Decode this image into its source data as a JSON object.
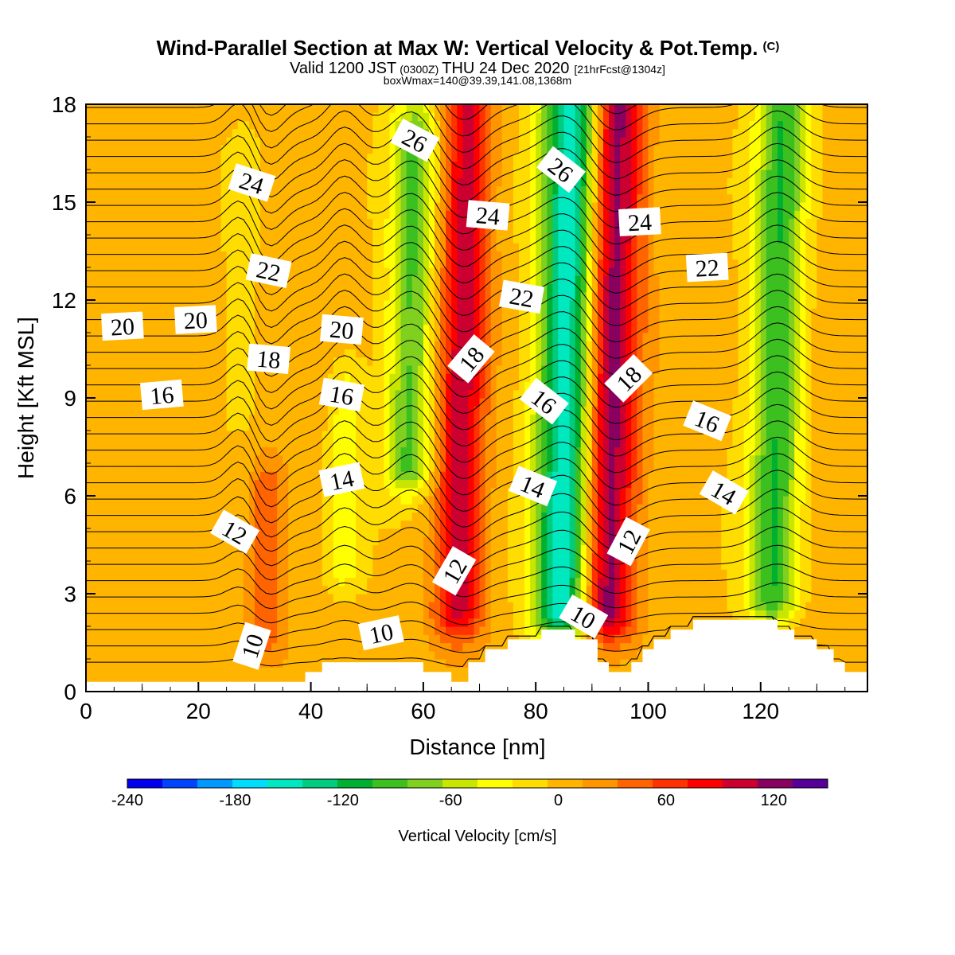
{
  "chart_data": {
    "type": "heatmap",
    "title": "Wind-Parallel Section at Max W: Vertical Velocity & Pot.Temp.",
    "title_mark": "(C)",
    "subtitle": {
      "valid": "Valid 1200 JST",
      "utc": "(0300Z)",
      "date": "THU 24 Dec 2020",
      "fcst": "[21hrFcst@1304z]"
    },
    "box_info": "boxWmax=140@39.39,141.08,1368m",
    "xlabel": "Distance [nm]",
    "ylabel": "Height [Kft MSL]",
    "xlim": [
      0,
      139
    ],
    "ylim": [
      0,
      18
    ],
    "x_ticks": [
      0,
      20,
      40,
      60,
      80,
      100,
      120
    ],
    "y_ticks": [
      0,
      3,
      6,
      9,
      12,
      15,
      18
    ],
    "colorbar": {
      "label": "Vertical Velocity [cm/s]",
      "range": [
        -240,
        150
      ],
      "step": 20,
      "tick_values": [
        -240,
        -180,
        -120,
        -60,
        0,
        60,
        120
      ],
      "colors": [
        "#0000ee",
        "#0044ff",
        "#0099ff",
        "#00ddff",
        "#00e8c0",
        "#00cc80",
        "#00b030",
        "#3cc020",
        "#80d020",
        "#c8e600",
        "#ffff00",
        "#ffdd00",
        "#ffb400",
        "#ff9600",
        "#ff6400",
        "#ff3200",
        "#ff0000",
        "#cc0030",
        "#880060",
        "#550099"
      ]
    },
    "vertical_velocity_features": [
      {
        "x_center": 67,
        "height_top": 18,
        "height_bottom": 2.5,
        "peak": 100
      },
      {
        "x_center": 86,
        "height_top": 18,
        "height_bottom": 2.5,
        "peak": -170
      },
      {
        "x_center": 93,
        "height_top": 18,
        "height_bottom": 2.5,
        "peak": 140
      },
      {
        "x_center": 58,
        "height_top": 17,
        "height_bottom": 7,
        "peak": -90
      },
      {
        "x_center": 123,
        "height_top": 18,
        "height_bottom": 3,
        "peak": -110
      },
      {
        "x_center": 32,
        "height_top": 6,
        "height_bottom": 2,
        "peak": 50
      },
      {
        "x_center": 46,
        "height_top": 9,
        "height_bottom": 4,
        "peak": -40
      },
      {
        "x_center": 28,
        "height_top": 16,
        "height_bottom": 9,
        "peak": -20
      }
    ],
    "terrain": [
      [
        0,
        0.3
      ],
      [
        39,
        0.3
      ],
      [
        39,
        0.6
      ],
      [
        42,
        0.6
      ],
      [
        42,
        0.9
      ],
      [
        60,
        0.9
      ],
      [
        60,
        0.6
      ],
      [
        65,
        0.6
      ],
      [
        65,
        0.3
      ],
      [
        68,
        0.3
      ],
      [
        68,
        0.9
      ],
      [
        71,
        0.9
      ],
      [
        71,
        1.3
      ],
      [
        75,
        1.3
      ],
      [
        75,
        1.6
      ],
      [
        81,
        1.6
      ],
      [
        81,
        1.9
      ],
      [
        87,
        1.9
      ],
      [
        87,
        1.6
      ],
      [
        91,
        1.6
      ],
      [
        91,
        0.9
      ],
      [
        93,
        0.9
      ],
      [
        93,
        0.6
      ],
      [
        97,
        0.6
      ],
      [
        97,
        0.9
      ],
      [
        99,
        0.9
      ],
      [
        99,
        1.3
      ],
      [
        101,
        1.3
      ],
      [
        101,
        1.6
      ],
      [
        104,
        1.6
      ],
      [
        104,
        1.9
      ],
      [
        108,
        1.9
      ],
      [
        108,
        2.2
      ],
      [
        123,
        2.2
      ],
      [
        123,
        1.9
      ],
      [
        126,
        1.9
      ],
      [
        126,
        1.6
      ],
      [
        130,
        1.6
      ],
      [
        130,
        1.3
      ],
      [
        133,
        1.3
      ],
      [
        133,
        0.9
      ],
      [
        135,
        0.9
      ],
      [
        135,
        0.6
      ],
      [
        139,
        0.6
      ]
    ],
    "theta_labels": [
      {
        "text": "10",
        "x": 29.5,
        "y": 1.4,
        "angle": -72
      },
      {
        "text": "10",
        "x": 52.5,
        "y": 1.8,
        "angle": -12
      },
      {
        "text": "10",
        "x": 88.5,
        "y": 2.3,
        "angle": 30
      },
      {
        "text": "12",
        "x": 26.5,
        "y": 4.9,
        "angle": 30
      },
      {
        "text": "12",
        "x": 65.5,
        "y": 3.7,
        "angle": -60
      },
      {
        "text": "12",
        "x": 96.5,
        "y": 4.6,
        "angle": -62
      },
      {
        "text": "14",
        "x": 45.5,
        "y": 6.5,
        "angle": -12
      },
      {
        "text": "14",
        "x": 79.5,
        "y": 6.3,
        "angle": 22
      },
      {
        "text": "14",
        "x": 113.5,
        "y": 6.1,
        "angle": 30
      },
      {
        "text": "16",
        "x": 13.5,
        "y": 9.1,
        "angle": -5
      },
      {
        "text": "16",
        "x": 45.5,
        "y": 9.1,
        "angle": 10
      },
      {
        "text": "16",
        "x": 81.5,
        "y": 8.9,
        "angle": 38
      },
      {
        "text": "16",
        "x": 110.5,
        "y": 8.3,
        "angle": 22
      },
      {
        "text": "18",
        "x": 32.5,
        "y": 10.2,
        "angle": 5
      },
      {
        "text": "18",
        "x": 68.5,
        "y": 10.2,
        "angle": -50
      },
      {
        "text": "18",
        "x": 96.5,
        "y": 9.6,
        "angle": -45
      },
      {
        "text": "20",
        "x": 6.5,
        "y": 11.2,
        "angle": -3
      },
      {
        "text": "20",
        "x": 19.5,
        "y": 11.4,
        "angle": -3
      },
      {
        "text": "20",
        "x": 45.5,
        "y": 11.1,
        "angle": 5
      },
      {
        "text": "22",
        "x": 32.5,
        "y": 12.9,
        "angle": 12
      },
      {
        "text": "22",
        "x": 77.5,
        "y": 12.1,
        "angle": 10
      },
      {
        "text": "22",
        "x": 110.5,
        "y": 13.0,
        "angle": -3
      },
      {
        "text": "24",
        "x": 29.5,
        "y": 15.6,
        "angle": 18
      },
      {
        "text": "24",
        "x": 71.5,
        "y": 14.6,
        "angle": 5
      },
      {
        "text": "24",
        "x": 98.5,
        "y": 14.4,
        "angle": -3
      },
      {
        "text": "26",
        "x": 58.5,
        "y": 16.9,
        "angle": 28
      },
      {
        "text": "26",
        "x": 84.5,
        "y": 16.0,
        "angle": 38
      }
    ]
  }
}
